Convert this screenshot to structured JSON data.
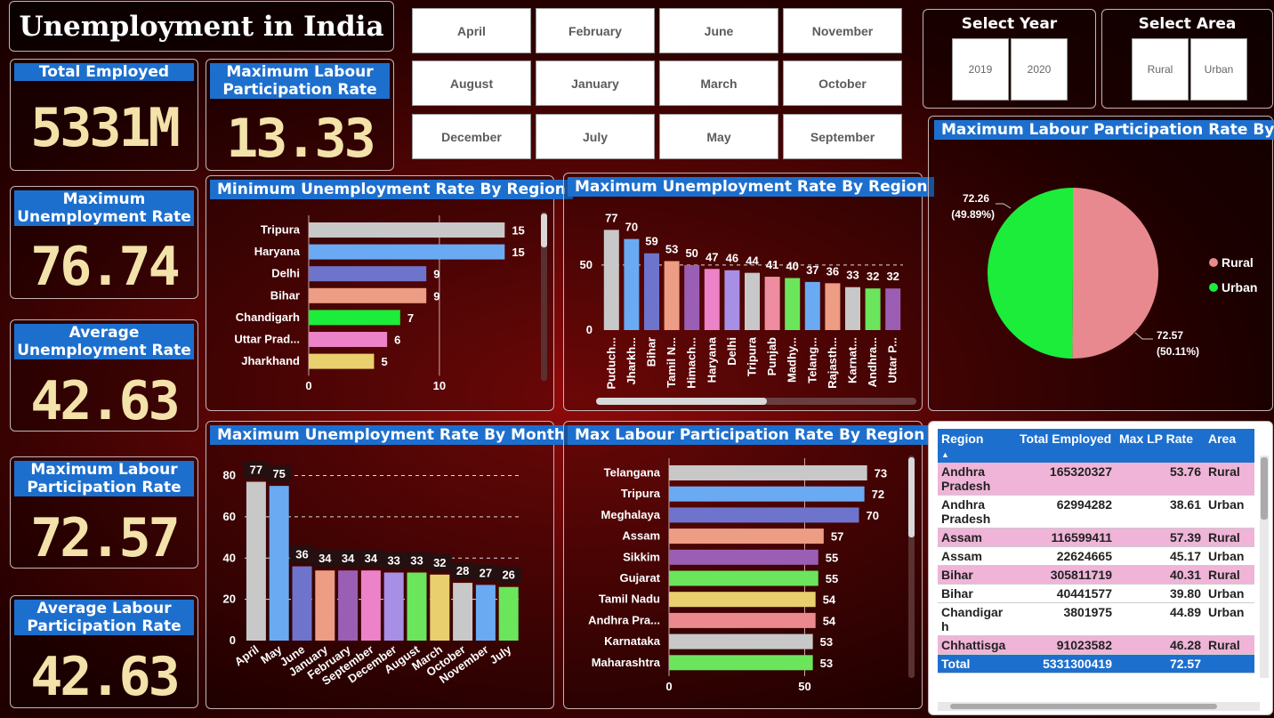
{
  "app_title": "Unemployment in India",
  "kpis": {
    "total_employed": {
      "label": "Total Employed",
      "value": "5331M"
    },
    "max_lpr_top": {
      "label": "Maximum Labour Participation Rate",
      "value": "13.33"
    },
    "max_unemployment": {
      "label": "Maximum Unemployment Rate",
      "value": "76.74"
    },
    "avg_unemployment": {
      "label": "Average Unemployment Rate",
      "value": "42.63"
    },
    "max_lpr": {
      "label": "Maximum Labour Participation Rate",
      "value": "72.57"
    },
    "avg_lpr": {
      "label": "Average Labour Participation Rate",
      "value": "42.63"
    }
  },
  "months": [
    "April",
    "February",
    "June",
    "November",
    "August",
    "January",
    "March",
    "October",
    "December",
    "July",
    "May",
    "September"
  ],
  "year_slicer": {
    "title": "Select Year",
    "options": [
      "2019",
      "2020"
    ]
  },
  "area_slicer": {
    "title": "Select Area",
    "options": [
      "Rural",
      "Urban"
    ]
  },
  "colors": {
    "accent": "#1d6fce",
    "kpi_value": "#f3e2a9"
  },
  "palette": [
    "#c8c8c8",
    "#6aaaf2",
    "#6e74cb",
    "#ec9d84",
    "#9a5fb4",
    "#ec82c8",
    "#a88fe6",
    "#6be55c",
    "#e9cf6e",
    "#c7c7c7",
    "#6aaaf2",
    "#8dd66a",
    "#c45dc0",
    "#ee8da0",
    "#1cec3a"
  ],
  "chart_data": [
    {
      "type": "bar",
      "orientation": "horizontal",
      "title": "Minimum Unemployment Rate By Region",
      "categories": [
        "Tripura",
        "Haryana",
        "Delhi",
        "Bihar",
        "Chandigarh",
        "Uttar Prad...",
        "Jharkhand"
      ],
      "values": [
        15,
        15,
        9,
        9,
        7,
        6,
        5
      ],
      "colors": [
        "#c8c8c8",
        "#6aaaf2",
        "#6e74cb",
        "#ec9d84",
        "#1cec3a",
        "#ec82c8",
        "#e9cf6e"
      ],
      "xticks": [
        "0",
        "10"
      ],
      "xlim": [
        0,
        16
      ]
    },
    {
      "type": "bar",
      "title": "Maximum Unemployment Rate By Region",
      "categories": [
        "Puduch...",
        "Jharkh...",
        "Bihar",
        "Tamil N...",
        "Himach...",
        "Haryana",
        "Delhi",
        "Tripura",
        "Punjab",
        "Madhy...",
        "Telang...",
        "Rajasth...",
        "Karnat...",
        "Andhra...",
        "Uttar P..."
      ],
      "values": [
        77,
        70,
        59,
        53,
        50,
        47,
        46,
        44,
        41,
        40,
        37,
        36,
        33,
        32,
        32
      ],
      "colors": [
        "#c8c8c8",
        "#6aaaf2",
        "#6e74cb",
        "#ec9d84",
        "#9a5fb4",
        "#ec82c8",
        "#a88fe6",
        "#c8c8c8",
        "#ee8da0",
        "#6be55c",
        "#6aaaf2",
        "#ec9d84",
        "#c8c8c8",
        "#6be55c",
        "#9a5fb4"
      ],
      "yticks": [
        "0",
        "50"
      ],
      "ylim": [
        0,
        80
      ]
    },
    {
      "type": "pie",
      "title": "Maximum Labour Participation Rate By Area",
      "labels": [
        "Rural",
        "Urban"
      ],
      "values": [
        72.57,
        72.26
      ],
      "value_labels": [
        "72.57",
        "72.26"
      ],
      "percent_labels": [
        "(50.11%)",
        "(49.89%)"
      ],
      "colors": [
        "#e8898f",
        "#1cec3a"
      ],
      "legend": "right"
    },
    {
      "type": "bar",
      "title": "Maximum Unemployment Rate By Month",
      "categories": [
        "April",
        "May",
        "June",
        "January",
        "February",
        "September",
        "December",
        "August",
        "March",
        "October",
        "November",
        "July"
      ],
      "values": [
        77,
        75,
        36,
        34,
        34,
        34,
        33,
        33,
        32,
        28,
        27,
        26
      ],
      "colors": [
        "#c8c8c8",
        "#6aaaf2",
        "#6e74cb",
        "#ec9d84",
        "#9a5fb4",
        "#ec82c8",
        "#a88fe6",
        "#6be55c",
        "#e9cf6e",
        "#c8c8c8",
        "#6aaaf2",
        "#6be55c"
      ],
      "yticks": [
        "0",
        "20",
        "40",
        "60",
        "80"
      ],
      "ylim": [
        0,
        88
      ],
      "grid": true
    },
    {
      "type": "bar",
      "orientation": "horizontal",
      "title": "Max Labour Participation Rate By Region",
      "categories": [
        "Telangana",
        "Tripura",
        "Meghalaya",
        "Assam",
        "Sikkim",
        "Gujarat",
        "Tamil Nadu",
        "Andhra Pra...",
        "Karnataka",
        "Maharashtra"
      ],
      "values": [
        73,
        72,
        70,
        57,
        55,
        55,
        54,
        54,
        53,
        53
      ],
      "colors": [
        "#c8c8c8",
        "#6aaaf2",
        "#6e74cb",
        "#ec9d84",
        "#9a5fb4",
        "#6be55c",
        "#e9cf6e",
        "#ec898f",
        "#c8c8c8",
        "#6be55c"
      ],
      "xticks": [
        "0",
        "50"
      ],
      "xlim": [
        0,
        80
      ]
    }
  ],
  "table": {
    "columns": [
      "Region",
      "Total Employed",
      "Max LP Rate",
      "Area"
    ],
    "rows": [
      [
        "Andhra Pradesh",
        "165320327",
        "53.76",
        "Rural"
      ],
      [
        "Andhra Pradesh",
        "62994282",
        "38.61",
        "Urban"
      ],
      [
        "Assam",
        "116599411",
        "57.39",
        "Rural"
      ],
      [
        "Assam",
        "22624665",
        "45.17",
        "Urban"
      ],
      [
        "Bihar",
        "305811719",
        "40.31",
        "Rural"
      ],
      [
        "Bihar",
        "40441577",
        "39.80",
        "Urban"
      ],
      [
        "Chandigar h",
        "3801975",
        "44.89",
        "Urban"
      ],
      [
        "Chhattisga",
        "91023582",
        "46.28",
        "Rural"
      ]
    ],
    "total": [
      "Total",
      "5331300419",
      "72.57",
      ""
    ]
  }
}
